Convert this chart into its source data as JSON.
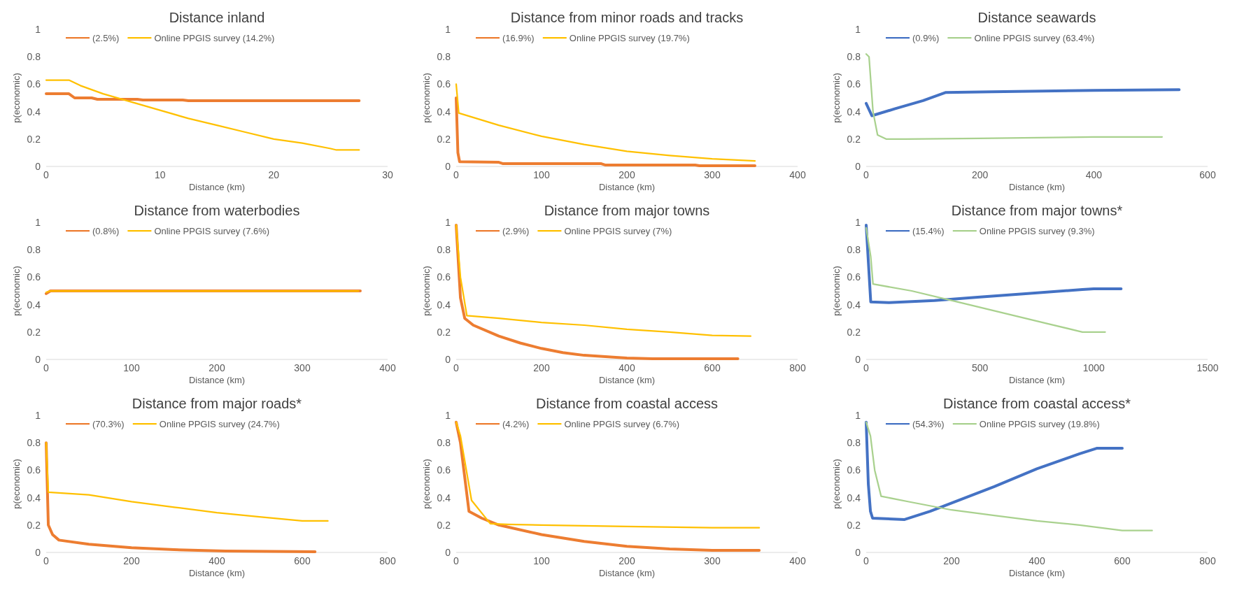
{
  "chart_data": [
    {
      "type": "line",
      "title": "Distance inland",
      "xlabel": "Distance (km)",
      "ylabel": "p(economic)",
      "xlim": [
        0,
        30
      ],
      "xticks": [
        0,
        10,
        20,
        30
      ],
      "ylim": [
        0,
        1
      ],
      "yticks": [
        0,
        0.2,
        0.4,
        0.6,
        0.8,
        1
      ],
      "legend": "top",
      "series": [
        {
          "name": "(2.5%)",
          "color": "#ed7d31",
          "x": [
            0,
            2,
            2.5,
            4,
            4.5,
            8,
            8.5,
            12,
            12.5,
            27.5
          ],
          "values": [
            0.53,
            0.53,
            0.5,
            0.5,
            0.49,
            0.49,
            0.485,
            0.485,
            0.48,
            0.48
          ]
        },
        {
          "name": "Online PPGIS survey (14.2%)",
          "color": "#ffc000",
          "x": [
            0,
            2,
            3,
            5,
            7.5,
            10,
            12.5,
            15,
            17.5,
            20,
            22.5,
            25,
            25.5,
            27.5
          ],
          "values": [
            0.63,
            0.63,
            0.59,
            0.53,
            0.47,
            0.41,
            0.35,
            0.3,
            0.25,
            0.2,
            0.17,
            0.13,
            0.12,
            0.12
          ]
        }
      ]
    },
    {
      "type": "line",
      "title": "Distance from minor roads and tracks",
      "xlabel": "Distance (km)",
      "ylabel": "p(economic)",
      "xlim": [
        0,
        400
      ],
      "xticks": [
        0,
        100,
        200,
        300,
        400
      ],
      "ylim": [
        0,
        1
      ],
      "yticks": [
        0,
        0.2,
        0.4,
        0.6,
        0.8,
        1
      ],
      "legend": "top",
      "series": [
        {
          "name": "(16.9%)",
          "color": "#ed7d31",
          "x": [
            0,
            2,
            4,
            50,
            55,
            170,
            175,
            280,
            285,
            350
          ],
          "values": [
            0.5,
            0.1,
            0.035,
            0.03,
            0.02,
            0.02,
            0.01,
            0.01,
            0.005,
            0.005
          ]
        },
        {
          "name": "Online PPGIS survey (19.7%)",
          "color": "#ffc000",
          "x": [
            0,
            3,
            50,
            100,
            150,
            200,
            250,
            300,
            350
          ],
          "values": [
            0.6,
            0.39,
            0.3,
            0.22,
            0.16,
            0.11,
            0.08,
            0.055,
            0.04
          ]
        }
      ]
    },
    {
      "type": "line",
      "title": "Distance seawards",
      "xlabel": "Distance (km)",
      "ylabel": "p(economic)",
      "xlim": [
        0,
        600
      ],
      "xticks": [
        0,
        200,
        400,
        600
      ],
      "ylim": [
        0,
        1
      ],
      "yticks": [
        0,
        0.2,
        0.4,
        0.6,
        0.8,
        1
      ],
      "legend": "top",
      "series": [
        {
          "name": "(0.9%)",
          "color": "#4472c4",
          "x": [
            0,
            10,
            50,
            100,
            140,
            220,
            310,
            400,
            550
          ],
          "values": [
            0.46,
            0.37,
            0.42,
            0.48,
            0.54,
            0.545,
            0.55,
            0.555,
            0.56
          ]
        },
        {
          "name": "Online PPGIS survey (63.4%)",
          "color": "#a9d18e",
          "x": [
            0,
            5,
            12,
            20,
            35,
            70,
            200,
            400,
            520
          ],
          "values": [
            0.82,
            0.8,
            0.4,
            0.23,
            0.2,
            0.2,
            0.205,
            0.215,
            0.215
          ]
        }
      ]
    },
    {
      "type": "line",
      "title": "Distance from waterbodies",
      "xlabel": "Distance (km)",
      "ylabel": "p(economic)",
      "xlim": [
        0,
        400
      ],
      "xticks": [
        0,
        100,
        200,
        300,
        400
      ],
      "ylim": [
        0,
        1
      ],
      "yticks": [
        0,
        0.2,
        0.4,
        0.6,
        0.8,
        1
      ],
      "legend": "top",
      "series": [
        {
          "name": "(0.8%)",
          "color": "#ed7d31",
          "x": [
            0,
            5,
            368
          ],
          "values": [
            0.48,
            0.5,
            0.5
          ]
        },
        {
          "name": "Online PPGIS survey (7.6%)",
          "color": "#ffc000",
          "x": [
            0,
            5,
            366
          ],
          "values": [
            0.49,
            0.5,
            0.5
          ]
        }
      ]
    },
    {
      "type": "line",
      "title": "Distance from major towns",
      "xlabel": "Distance (km)",
      "ylabel": "p(economic)",
      "xlim": [
        0,
        800
      ],
      "xticks": [
        0,
        200,
        400,
        600,
        800
      ],
      "ylim": [
        0,
        1
      ],
      "yticks": [
        0,
        0.2,
        0.4,
        0.6,
        0.8,
        1
      ],
      "legend": "top",
      "series": [
        {
          "name": "(2.9%)",
          "color": "#ed7d31",
          "x": [
            0,
            10,
            20,
            40,
            100,
            150,
            200,
            250,
            300,
            400,
            460,
            660
          ],
          "values": [
            0.98,
            0.45,
            0.3,
            0.25,
            0.17,
            0.12,
            0.08,
            0.05,
            0.03,
            0.01,
            0.005,
            0.005
          ]
        },
        {
          "name": "Online PPGIS survey (7%)",
          "color": "#ffc000",
          "x": [
            0,
            10,
            25,
            100,
            200,
            300,
            400,
            500,
            600,
            690
          ],
          "values": [
            0.98,
            0.6,
            0.32,
            0.3,
            0.27,
            0.25,
            0.22,
            0.2,
            0.175,
            0.17
          ]
        }
      ]
    },
    {
      "type": "line",
      "title": "Distance from major towns*",
      "xlabel": "Distance (km)",
      "ylabel": "p(economic)",
      "xlim": [
        0,
        1500
      ],
      "xticks": [
        0,
        500,
        1000,
        1500
      ],
      "ylim": [
        0,
        1
      ],
      "yticks": [
        0,
        0.2,
        0.4,
        0.6,
        0.8,
        1
      ],
      "legend": "top",
      "series": [
        {
          "name": "(15.4%)",
          "color": "#4472c4",
          "x": [
            0,
            20,
            100,
            300,
            500,
            700,
            950,
            1000,
            1120
          ],
          "values": [
            0.98,
            0.42,
            0.415,
            0.43,
            0.455,
            0.48,
            0.51,
            0.515,
            0.515
          ]
        },
        {
          "name": "Online PPGIS survey (9.3%)",
          "color": "#a9d18e",
          "x": [
            0,
            20,
            30,
            200,
            400,
            600,
            800,
            950,
            1050
          ],
          "values": [
            0.96,
            0.75,
            0.55,
            0.5,
            0.42,
            0.34,
            0.26,
            0.2,
            0.2
          ]
        }
      ]
    },
    {
      "type": "line",
      "title": "Distance from major roads*",
      "xlabel": "Distance (km)",
      "ylabel": "p(economic)",
      "xlim": [
        0,
        800
      ],
      "xticks": [
        0,
        200,
        400,
        600,
        800
      ],
      "ylim": [
        0,
        1
      ],
      "yticks": [
        0,
        0.2,
        0.4,
        0.6,
        0.8,
        1
      ],
      "legend": "top",
      "series": [
        {
          "name": "(70.3%)",
          "color": "#ed7d31",
          "x": [
            0,
            5,
            15,
            30,
            100,
            200,
            300,
            420,
            630
          ],
          "values": [
            0.8,
            0.2,
            0.13,
            0.09,
            0.06,
            0.035,
            0.02,
            0.01,
            0.005
          ]
        },
        {
          "name": "Online PPGIS survey (24.7%)",
          "color": "#ffc000",
          "x": [
            0,
            5,
            100,
            200,
            300,
            400,
            500,
            600,
            660
          ],
          "values": [
            0.8,
            0.44,
            0.42,
            0.37,
            0.33,
            0.29,
            0.26,
            0.23,
            0.23
          ]
        }
      ]
    },
    {
      "type": "line",
      "title": "Distance from coastal access",
      "xlabel": "Distance (km)",
      "ylabel": "p(economic)",
      "xlim": [
        0,
        400
      ],
      "xticks": [
        0,
        100,
        200,
        300,
        400
      ],
      "ylim": [
        0,
        1
      ],
      "yticks": [
        0,
        0.2,
        0.4,
        0.6,
        0.8,
        1
      ],
      "legend": "top",
      "series": [
        {
          "name": "(4.2%)",
          "color": "#ed7d31",
          "x": [
            0,
            5,
            15,
            30,
            50,
            100,
            150,
            200,
            250,
            300,
            355
          ],
          "values": [
            0.95,
            0.8,
            0.3,
            0.25,
            0.2,
            0.13,
            0.08,
            0.045,
            0.025,
            0.015,
            0.015
          ]
        },
        {
          "name": "Online PPGIS survey (6.7%)",
          "color": "#ffc000",
          "x": [
            0,
            5,
            18,
            40,
            60,
            100,
            200,
            300,
            355
          ],
          "values": [
            0.95,
            0.85,
            0.38,
            0.21,
            0.205,
            0.2,
            0.19,
            0.18,
            0.18
          ]
        }
      ]
    },
    {
      "type": "line",
      "title": "Distance from coastal access*",
      "xlabel": "Distance (km)",
      "ylabel": "p(economic)",
      "xlim": [
        0,
        800
      ],
      "xticks": [
        0,
        200,
        400,
        600,
        800
      ],
      "ylim": [
        0,
        1
      ],
      "yticks": [
        0,
        0.2,
        0.4,
        0.6,
        0.8,
        1
      ],
      "legend": "top",
      "series": [
        {
          "name": "(54.3%)",
          "color": "#4472c4",
          "x": [
            0,
            5,
            10,
            15,
            90,
            150,
            200,
            300,
            400,
            500,
            540,
            600
          ],
          "values": [
            0.95,
            0.5,
            0.3,
            0.25,
            0.24,
            0.3,
            0.36,
            0.48,
            0.61,
            0.72,
            0.76,
            0.76
          ]
        },
        {
          "name": "Online PPGIS survey (19.8%)",
          "color": "#a9d18e",
          "x": [
            0,
            10,
            20,
            35,
            100,
            200,
            300,
            400,
            500,
            600,
            670
          ],
          "values": [
            0.95,
            0.85,
            0.6,
            0.41,
            0.37,
            0.31,
            0.27,
            0.23,
            0.2,
            0.16,
            0.16
          ]
        }
      ]
    }
  ]
}
